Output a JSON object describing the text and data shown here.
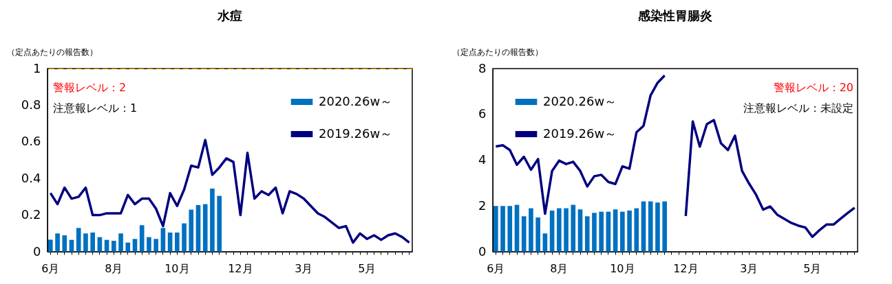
{
  "chart_data": [
    {
      "type": "bar",
      "title": "水痘",
      "ylabel": "（定点あたりの報告数）",
      "categories": [
        "6月",
        null,
        null,
        null,
        null,
        null,
        null,
        null,
        null,
        "8月",
        null,
        null,
        null,
        null,
        null,
        null,
        null,
        null,
        "10月",
        null,
        null,
        null,
        null,
        null,
        null,
        null,
        null,
        "12月",
        null,
        null,
        null,
        null,
        null,
        null,
        null,
        null,
        "3月",
        null,
        null,
        null,
        null,
        null,
        null,
        null,
        null,
        "5月",
        null,
        null,
        null,
        null,
        null,
        null
      ],
      "series": [
        {
          "name": "2020.26w～",
          "color": "#0070c0",
          "values": [
            0.066,
            0.1,
            0.09,
            0.065,
            0.13,
            0.1,
            0.105,
            0.08,
            0.065,
            0.06,
            0.1,
            0.05,
            0.07,
            0.145,
            0.08,
            0.07,
            0.13,
            0.105,
            0.105,
            0.155,
            0.23,
            0.255,
            0.26,
            0.345,
            0.305,
            null,
            null,
            null,
            null,
            null,
            null,
            null,
            null,
            null,
            null,
            null,
            null,
            null,
            null,
            null,
            null,
            null,
            null,
            null,
            null,
            null,
            null,
            null,
            null,
            null,
            null,
            null
          ]
        },
        {
          "name": "2019.26w～",
          "type": "line",
          "color": "#000080",
          "values": [
            0.32,
            0.26,
            0.35,
            0.29,
            0.3,
            0.35,
            0.2,
            0.2,
            0.21,
            0.21,
            0.21,
            0.31,
            0.26,
            0.29,
            0.29,
            0.235,
            0.14,
            0.32,
            0.25,
            0.34,
            0.47,
            0.46,
            0.61,
            0.42,
            0.46,
            0.51,
            0.49,
            0.2,
            0.54,
            0.29,
            0.33,
            0.31,
            0.35,
            0.21,
            0.33,
            0.315,
            0.29,
            0.25,
            0.21,
            0.19,
            0.16,
            0.13,
            0.14,
            0.05,
            0.1,
            0.07,
            0.09,
            0.065,
            0.09,
            0.1,
            0.08,
            0.05
          ]
        }
      ],
      "ylim": [
        0,
        1
      ],
      "yticks": [
        0,
        0.2,
        0.4,
        0.6,
        0.8,
        1
      ],
      "grid": false,
      "legend": "top right",
      "ref_lines": [
        {
          "axis": "y",
          "value": 1,
          "color": "#ffc000",
          "line_style": "dashed"
        }
      ],
      "annotations": [
        "警報レベル：2",
        "注意報レベル：1"
      ]
    },
    {
      "type": "bar",
      "title": "感染性胃腸炎",
      "ylabel": "（定点あたりの報告数）",
      "categories": [
        "6月",
        null,
        null,
        null,
        null,
        null,
        null,
        null,
        null,
        "8月",
        null,
        null,
        null,
        null,
        null,
        null,
        null,
        null,
        "10月",
        null,
        null,
        null,
        null,
        null,
        null,
        null,
        null,
        "12月",
        null,
        null,
        null,
        null,
        null,
        null,
        null,
        null,
        "3月",
        null,
        null,
        null,
        null,
        null,
        null,
        null,
        null,
        "5月",
        null,
        null,
        null,
        null,
        null,
        null
      ],
      "series": [
        {
          "name": "2020.26w～",
          "color": "#0070c0",
          "values": [
            2.0,
            2.0,
            2.0,
            2.05,
            1.55,
            1.9,
            1.5,
            0.8,
            1.8,
            1.9,
            1.9,
            2.05,
            1.85,
            1.55,
            1.7,
            1.75,
            1.75,
            1.85,
            1.75,
            1.8,
            1.9,
            2.2,
            2.2,
            2.15,
            2.2,
            null,
            null,
            null,
            null,
            null,
            null,
            null,
            null,
            null,
            null,
            null,
            null,
            null,
            null,
            null,
            null,
            null,
            null,
            null,
            null,
            null,
            null,
            null,
            null,
            null,
            null,
            null
          ]
        },
        {
          "name": "2019.26w～",
          "type": "line",
          "color": "#000080",
          "values": [
            4.6,
            4.65,
            4.44,
            3.8,
            4.15,
            3.58,
            4.05,
            1.66,
            3.53,
            3.98,
            3.83,
            3.93,
            3.53,
            2.85,
            3.3,
            3.36,
            3.05,
            2.96,
            3.73,
            3.63,
            5.22,
            5.5,
            6.83,
            7.38,
            7.7,
            null,
            null,
            1.56,
            5.69,
            4.59,
            5.57,
            5.75,
            4.74,
            4.44,
            5.07,
            3.53,
            2.98,
            2.49,
            1.84,
            1.98,
            1.62,
            1.44,
            1.26,
            1.14,
            1.06,
            0.65,
            0.94,
            1.19,
            1.19,
            1.44,
            1.69,
            1.92
          ]
        }
      ],
      "ylim": [
        0,
        8
      ],
      "yticks": [
        0,
        2,
        4,
        6,
        8
      ],
      "grid": false,
      "legend": "top left",
      "annotations": [
        "警報レベル：20",
        "注意報レベル：未設定"
      ]
    }
  ]
}
